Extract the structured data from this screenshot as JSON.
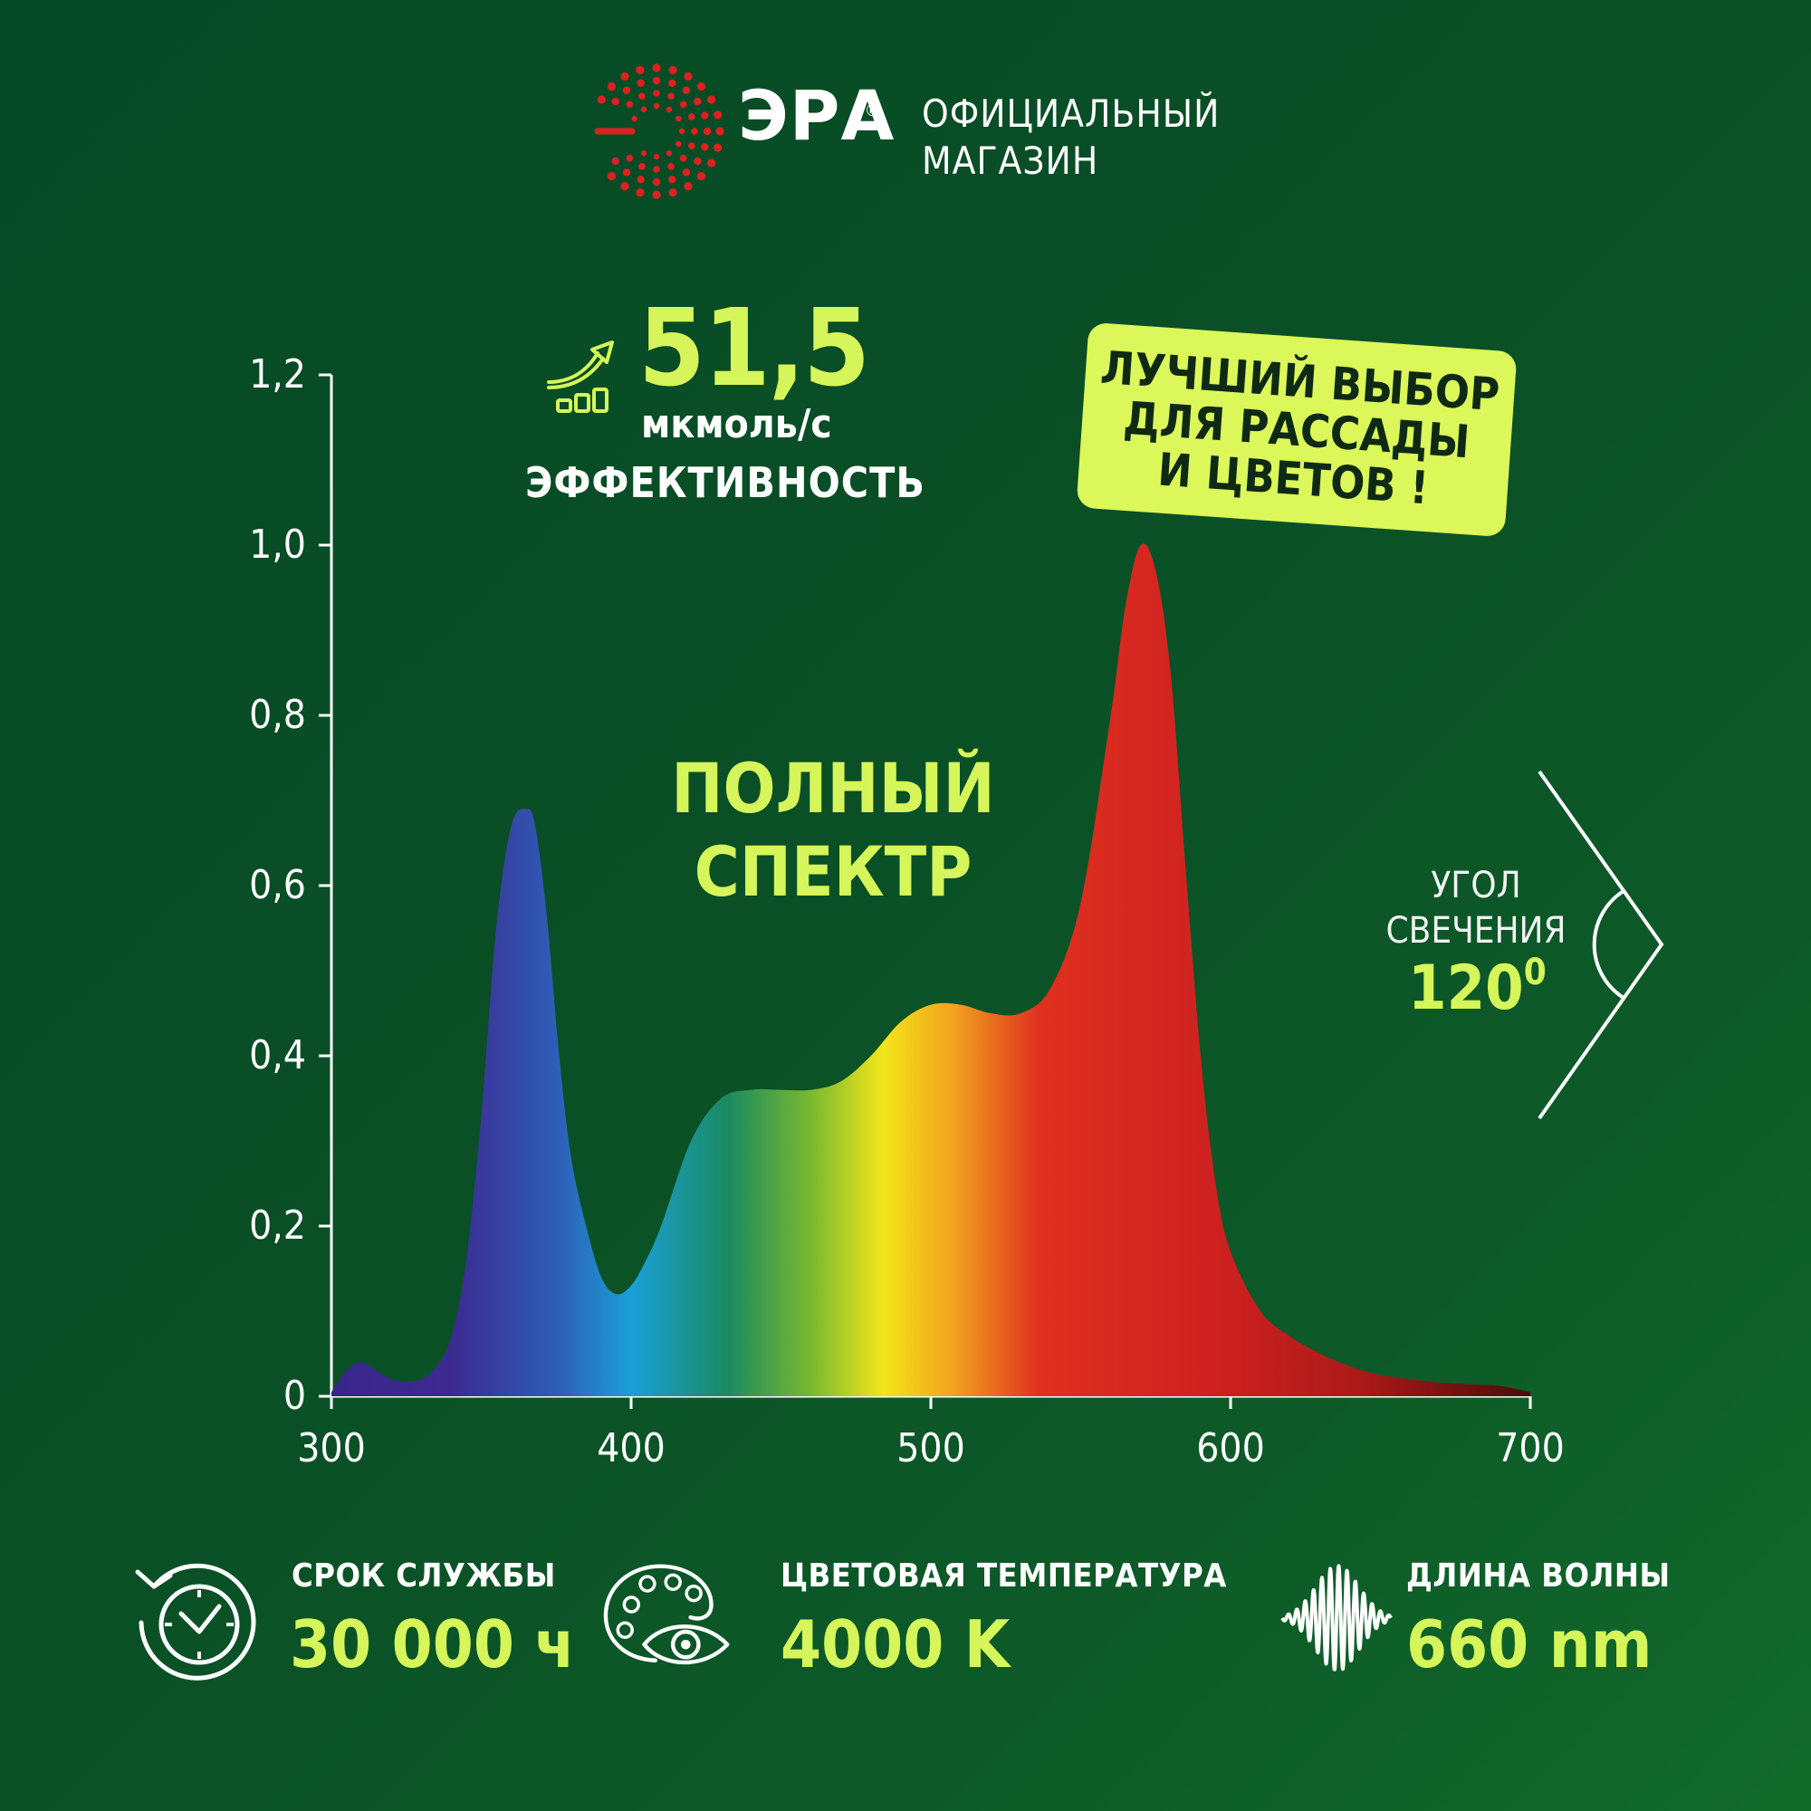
{
  "brand": {
    "name": "ЭРА",
    "reg": "®",
    "shop_label": "ОФИЦИАЛЬНЫЙ\nМАГАЗИН"
  },
  "efficiency": {
    "value": "51,5",
    "unit": "мкмоль/с",
    "label": "ЭФФЕКТИВНОСТЬ"
  },
  "badge": {
    "text": "ЛУЧШИЙ ВЫБОР\nДЛЯ РАССАДЫ\nИ ЦВЕТОВ !"
  },
  "spectrum_title": "ПОЛНЫЙ\nСПЕКТР",
  "angle": {
    "label": "УГОЛ\nСВЕЧЕНИЯ",
    "value": "120",
    "unit": "0"
  },
  "features": [
    {
      "title": "СРОК СЛУЖБЫ",
      "value": "30 000 ч",
      "icon": "clock-history-icon"
    },
    {
      "title": "ЦВЕТОВАЯ ТЕМПЕРАТУРА",
      "value": "4000 K",
      "icon": "palette-eye-icon"
    },
    {
      "title": "ДЛИНА ВОЛНЫ",
      "value": "660 nm",
      "icon": "waveform-icon"
    }
  ],
  "colors": {
    "accent": "#d6f55a",
    "background": "#0a4f26",
    "brand_red": "#e02020"
  },
  "chart_data": {
    "type": "area",
    "x": [
      300,
      305,
      310,
      315,
      320,
      325,
      330,
      335,
      340,
      345,
      350,
      355,
      360,
      365,
      368,
      372,
      376,
      380,
      385,
      390,
      395,
      400,
      405,
      410,
      420,
      430,
      440,
      450,
      460,
      470,
      480,
      490,
      500,
      510,
      520,
      530,
      540,
      550,
      560,
      565,
      570,
      575,
      580,
      585,
      590,
      595,
      600,
      610,
      620,
      630,
      640,
      650,
      660,
      670,
      680,
      690,
      700
    ],
    "y": [
      0.005,
      0.03,
      0.04,
      0.03,
      0.02,
      0.018,
      0.02,
      0.035,
      0.07,
      0.16,
      0.33,
      0.55,
      0.67,
      0.69,
      0.67,
      0.56,
      0.4,
      0.28,
      0.2,
      0.14,
      0.12,
      0.13,
      0.16,
      0.2,
      0.3,
      0.35,
      0.36,
      0.36,
      0.36,
      0.37,
      0.4,
      0.44,
      0.46,
      0.46,
      0.45,
      0.45,
      0.48,
      0.58,
      0.8,
      0.93,
      1.0,
      0.97,
      0.85,
      0.62,
      0.4,
      0.25,
      0.17,
      0.1,
      0.07,
      0.05,
      0.035,
      0.025,
      0.02,
      0.016,
      0.014,
      0.012,
      0.005
    ],
    "xlim": [
      300,
      700
    ],
    "ylim": [
      0,
      1.2
    ],
    "xticks": [
      "300",
      "400",
      "500",
      "600",
      "700"
    ],
    "yticks": [
      "0",
      "0,2",
      "0,4",
      "0,6",
      "0,8",
      "1,0",
      "1,2"
    ],
    "title": "ПОЛНЫЙ СПЕКТР",
    "xlabel": "",
    "ylabel": "",
    "grid": false,
    "fill": "spectrum-gradient"
  }
}
